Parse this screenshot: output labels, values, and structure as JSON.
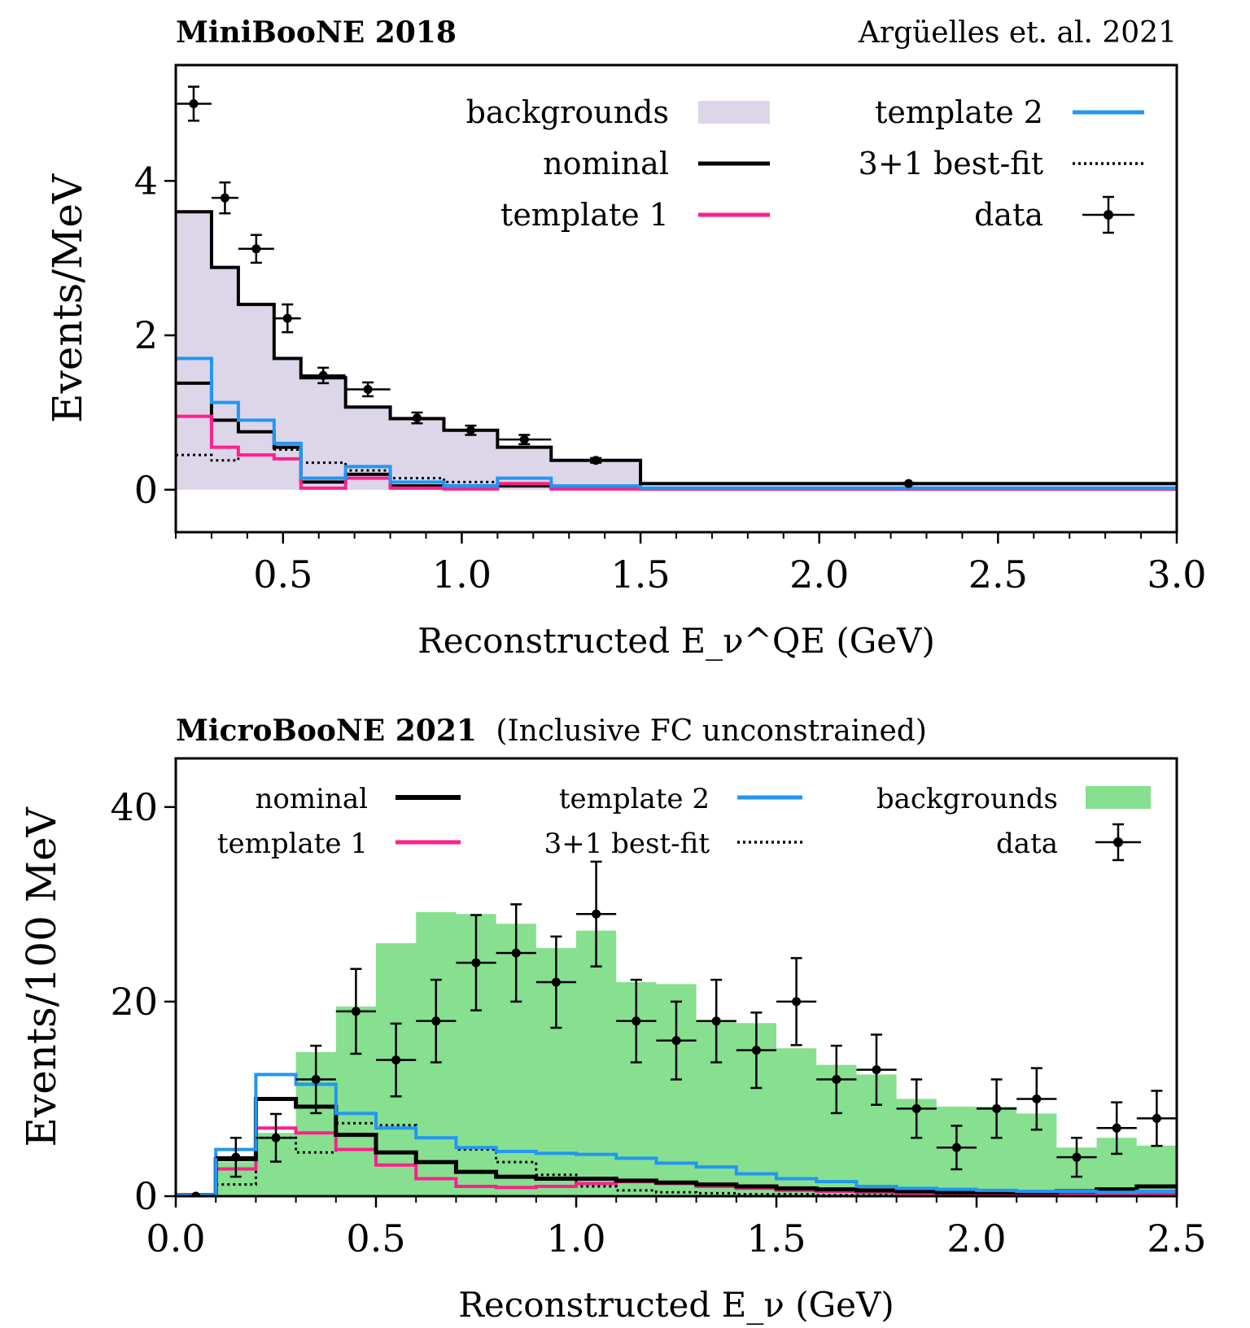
{
  "figure": {
    "header_left_top": "MiniBooNE 2018",
    "header_right_top": "Argüelles et. al. 2021",
    "header_left_bottom": "MicroBooNE 2021",
    "header_bottom_note": "(Inclusive FC unconstrained)"
  },
  "colors": {
    "nominal": "#000000",
    "template1": "#ff1f8e",
    "template2": "#2196f3",
    "bestfit": "#000000",
    "mini_backgrounds": "#dcd6e8",
    "micro_backgrounds": "#86e08f"
  },
  "chart_data": [
    {
      "type": "histogram",
      "title": "MiniBooNE 2018",
      "xlabel": "Reconstructed E_ν^QE (GeV)",
      "ylabel": "Events/MeV",
      "xlim": [
        0.2,
        3.0
      ],
      "ylim": [
        -0.55,
        5.5
      ],
      "xticks": [
        0.5,
        1.0,
        1.5,
        2.0,
        2.5,
        3.0
      ],
      "xtick_labels": [
        "0.5",
        "1.0",
        "1.5",
        "2.0",
        "2.5",
        "3.0"
      ],
      "yticks": [
        0,
        2,
        4
      ],
      "ytick_labels": [
        "0",
        "2",
        "4"
      ],
      "legend": {
        "placement": "top-right",
        "entries": [
          "backgrounds",
          "nominal",
          "template 1",
          "template 2",
          "3+1 best-fit",
          "data"
        ]
      },
      "bin_edges": [
        0.2,
        0.3,
        0.375,
        0.475,
        0.55,
        0.675,
        0.8,
        0.95,
        1.1,
        1.25,
        1.5,
        3.0
      ],
      "series": [
        {
          "name": "backgrounds",
          "kind": "fill",
          "values": [
            3.6,
            2.88,
            2.4,
            1.7,
            1.45,
            1.07,
            0.92,
            0.77,
            0.55,
            0.38,
            0.08
          ]
        },
        {
          "name": "nominal",
          "kind": "step",
          "values": [
            3.6,
            2.88,
            2.4,
            1.7,
            1.45,
            1.07,
            0.92,
            0.77,
            0.55,
            0.38,
            0.08
          ]
        },
        {
          "name": "nominal (signal)",
          "kind": "step",
          "values": [
            1.38,
            0.9,
            0.75,
            0.55,
            0.1,
            0.2,
            0.05,
            0.05,
            0.05,
            0.02,
            0.01
          ]
        },
        {
          "name": "template 1",
          "kind": "step",
          "values": [
            0.95,
            0.55,
            0.45,
            0.4,
            0.02,
            0.15,
            0.02,
            0.01,
            0.08,
            0.01,
            0.01
          ]
        },
        {
          "name": "template 2",
          "kind": "step",
          "values": [
            1.7,
            1.13,
            0.9,
            0.6,
            0.15,
            0.3,
            0.1,
            0.05,
            0.15,
            0.05,
            0.02
          ]
        },
        {
          "name": "3+1 best-fit",
          "kind": "dotted-step",
          "values": [
            0.45,
            0.38,
            0.45,
            0.52,
            0.35,
            0.25,
            0.15,
            0.1,
            0.08,
            0.05,
            0.02
          ]
        }
      ],
      "data_points": {
        "name": "data",
        "x": [
          0.25,
          0.3375,
          0.425,
          0.5125,
          0.6125,
          0.7375,
          0.875,
          1.025,
          1.175,
          1.375,
          2.25
        ],
        "y": [
          5.0,
          3.78,
          3.12,
          2.22,
          1.48,
          1.3,
          0.93,
          0.77,
          0.65,
          0.38,
          0.08
        ],
        "yerr": [
          0.22,
          0.2,
          0.18,
          0.18,
          0.1,
          0.09,
          0.07,
          0.06,
          0.06,
          0.03,
          0.01
        ]
      }
    },
    {
      "type": "histogram",
      "title": "MicroBooNE 2021",
      "subtitle": "(Inclusive FC unconstrained)",
      "xlabel": "Reconstructed E_ν (GeV)",
      "ylabel": "Events/100 MeV",
      "xlim": [
        0.0,
        2.5
      ],
      "ylim": [
        0,
        45
      ],
      "xticks": [
        0.0,
        0.5,
        1.0,
        1.5,
        2.0,
        2.5
      ],
      "xtick_labels": [
        "0.0",
        "0.5",
        "1.0",
        "1.5",
        "2.0",
        "2.5"
      ],
      "yticks": [
        0,
        20,
        40
      ],
      "ytick_labels": [
        "0",
        "20",
        "40"
      ],
      "legend": {
        "placement": "top",
        "entries": [
          "nominal",
          "template 1",
          "template 2",
          "3+1 best-fit",
          "backgrounds",
          "data"
        ]
      },
      "bin_edges": [
        0.0,
        0.1,
        0.2,
        0.3,
        0.4,
        0.5,
        0.6,
        0.7,
        0.8,
        0.9,
        1.0,
        1.1,
        1.2,
        1.3,
        1.4,
        1.5,
        1.6,
        1.7,
        1.8,
        1.9,
        2.0,
        2.1,
        2.2,
        2.3,
        2.4,
        2.5
      ],
      "series": [
        {
          "name": "backgrounds",
          "kind": "fill",
          "values": [
            0.2,
            3.5,
            6.5,
            14.8,
            19.5,
            26.0,
            29.2,
            29.0,
            28.0,
            25.5,
            27.3,
            22.0,
            21.8,
            18.0,
            17.8,
            15.2,
            13.5,
            12.5,
            10.0,
            9.2,
            9.2,
            8.5,
            5.0,
            6.0,
            5.2
          ]
        },
        {
          "name": "nominal",
          "kind": "step",
          "values": [
            0.1,
            3.8,
            10.0,
            9.2,
            6.3,
            4.5,
            3.5,
            2.5,
            2.0,
            1.8,
            1.8,
            1.6,
            1.4,
            1.2,
            1.0,
            0.8,
            0.7,
            0.6,
            0.5,
            0.4,
            0.4,
            0.4,
            0.5,
            0.7,
            1.0
          ]
        },
        {
          "name": "template 1",
          "kind": "step",
          "values": [
            0.05,
            2.8,
            7.0,
            6.5,
            4.8,
            3.2,
            1.8,
            1.0,
            0.9,
            1.0,
            1.3,
            1.5,
            1.3,
            1.0,
            0.8,
            0.6,
            0.5,
            0.4,
            0.3,
            0.3,
            0.2,
            0.2,
            0.2,
            0.2,
            0.2
          ]
        },
        {
          "name": "template 2",
          "kind": "step",
          "values": [
            0.1,
            4.8,
            12.5,
            11.5,
            8.5,
            7.0,
            6.0,
            5.0,
            4.6,
            4.4,
            4.3,
            3.9,
            3.4,
            3.0,
            2.3,
            1.8,
            1.5,
            1.0,
            0.8,
            0.7,
            0.6,
            0.5,
            0.5,
            0.4,
            0.5
          ]
        },
        {
          "name": "3+1 best-fit",
          "kind": "dotted-step",
          "values": [
            0.05,
            1.2,
            6.0,
            4.5,
            7.5,
            7.3,
            6.0,
            4.8,
            3.5,
            2.2,
            1.0,
            0.6,
            0.4,
            0.3,
            0.2,
            0.2,
            0.1,
            0.1,
            0.1,
            0.1,
            0.1,
            0.1,
            0.1,
            0.1,
            0.1
          ]
        }
      ],
      "data_points": {
        "name": "data",
        "x": [
          0.05,
          0.15,
          0.25,
          0.35,
          0.45,
          0.55,
          0.65,
          0.75,
          0.85,
          0.95,
          1.05,
          1.15,
          1.25,
          1.35,
          1.45,
          1.55,
          1.65,
          1.75,
          1.85,
          1.95,
          2.05,
          2.15,
          2.25,
          2.35,
          2.45
        ],
        "y": [
          0,
          4,
          6,
          12,
          19,
          14,
          18,
          24,
          25,
          22,
          29,
          18,
          16,
          18,
          15,
          20,
          12,
          13,
          9,
          5,
          9,
          10,
          4,
          7,
          8
        ]
      }
    }
  ]
}
